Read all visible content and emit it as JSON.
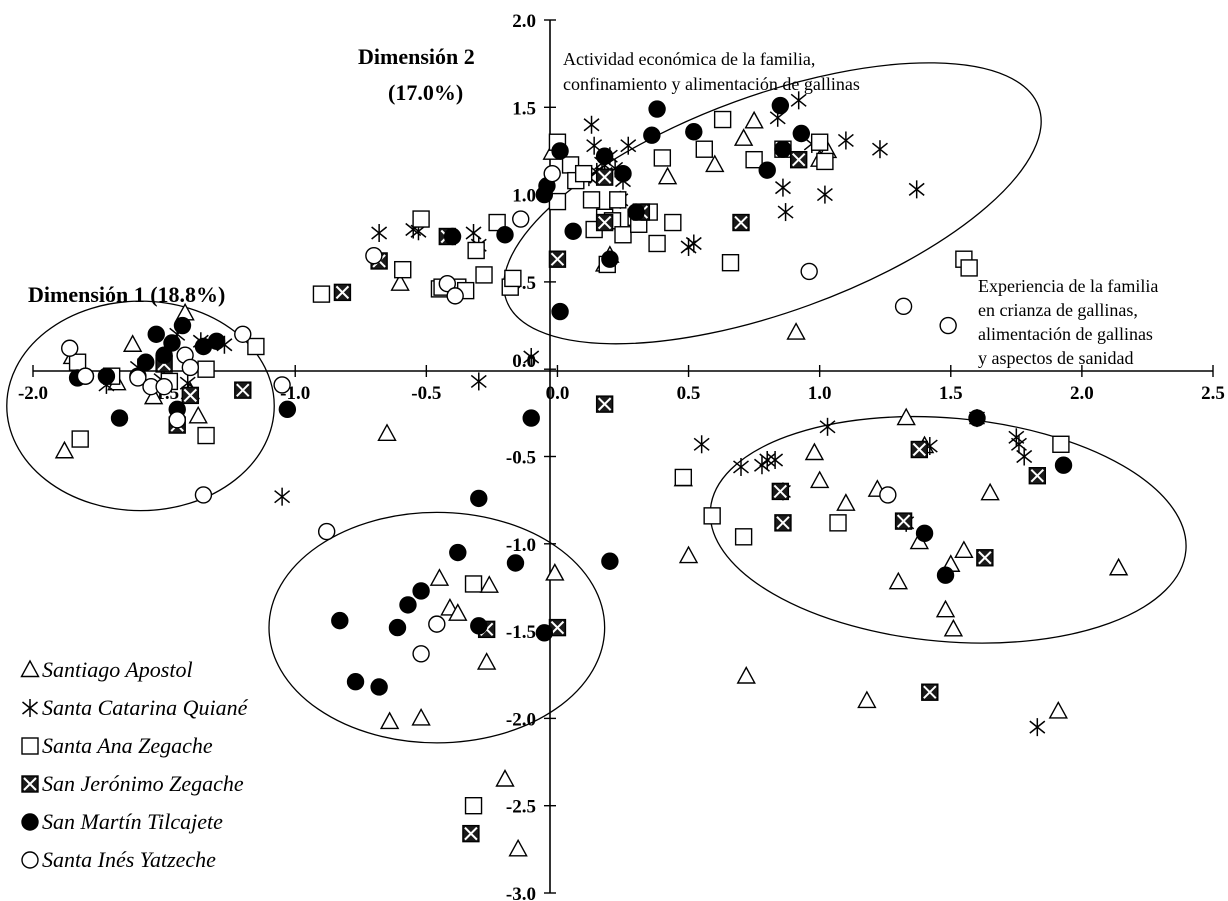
{
  "chart_data": {
    "type": "scatter",
    "xlim": [
      -2.0,
      2.5
    ],
    "ylim": [
      -3.0,
      2.0
    ],
    "x_ticks": [
      -2.0,
      -1.5,
      -1.0,
      -0.5,
      0.0,
      0.5,
      1.0,
      1.5,
      2.0,
      2.5
    ],
    "y_ticks": [
      -3.0,
      -2.5,
      -2.0,
      -1.5,
      -1.0,
      -0.5,
      0.0,
      0.5,
      1.0,
      1.5,
      2.0
    ],
    "x_tick_labels": [
      "-2.0",
      "-1.5",
      "-1.0",
      "-0.5",
      "0.0",
      "0.5",
      "1.0",
      "1.5",
      "2.0",
      "2.5"
    ],
    "y_tick_labels": [
      "-3.0",
      "-2.5",
      "-2.0",
      "-1.5",
      "-1.0",
      "-0.5",
      "0.0",
      "0.5",
      "1.0",
      "1.5",
      "2.0"
    ],
    "grid": false,
    "axis_labels": {
      "dimension1": "Dimensión 1 (18.8%)",
      "dimension2_line1": "Dimensión 2",
      "dimension2_line2": "(17.0%)"
    },
    "annotations": {
      "top_line1": "Actividad económica de la familia,",
      "top_line2": "confinamiento y alimentación de gallinas",
      "right_line1": "Experiencia de la familia",
      "right_line2": "en crianza de gallinas,",
      "right_line3": "alimentación de gallinas",
      "right_line4": "y aspectos de sanidad"
    },
    "legend_position": "bottom-left",
    "clusters": [
      {
        "cx": 0.82,
        "cy": 0.95,
        "rx": 1.08,
        "ry": 0.62,
        "angle": 20
      },
      {
        "cx": -1.59,
        "cy": -0.21,
        "rx": 0.51,
        "ry": 0.6,
        "angle": 0
      },
      {
        "cx": -0.46,
        "cy": -1.48,
        "rx": 0.64,
        "ry": 0.66,
        "angle": 0
      },
      {
        "cx": 1.49,
        "cy": -0.92,
        "rx": 0.91,
        "ry": 0.64,
        "angle": -5
      }
    ],
    "series": [
      {
        "name": "Santiago Apostol",
        "marker": "triangle",
        "points": [
          [
            -1.88,
            -0.47
          ],
          [
            -1.85,
            0.07
          ],
          [
            -1.68,
            -0.08
          ],
          [
            -1.62,
            0.14
          ],
          [
            -1.54,
            -0.16
          ],
          [
            -1.42,
            0.32
          ],
          [
            -1.4,
            -0.13
          ],
          [
            -1.37,
            -0.27
          ],
          [
            -0.65,
            -0.37
          ],
          [
            -0.6,
            0.49
          ],
          [
            -0.64,
            -2.02
          ],
          [
            -0.52,
            -2.0
          ],
          [
            -0.45,
            -1.2
          ],
          [
            -0.41,
            -1.37
          ],
          [
            -0.38,
            -1.4
          ],
          [
            -0.26,
            -1.24
          ],
          [
            -0.27,
            -1.68
          ],
          [
            -0.2,
            -2.35
          ],
          [
            -0.15,
            -2.75
          ],
          [
            -0.01,
            -1.17
          ],
          [
            -0.02,
            1.24
          ],
          [
            0.18,
            0.6
          ],
          [
            0.2,
            0.65
          ],
          [
            0.42,
            1.1
          ],
          [
            0.48,
            -0.63
          ],
          [
            0.5,
            -1.07
          ],
          [
            0.6,
            1.17
          ],
          [
            0.71,
            1.32
          ],
          [
            0.72,
            -1.76
          ],
          [
            0.75,
            1.42
          ],
          [
            0.91,
            0.21
          ],
          [
            0.98,
            -0.48
          ],
          [
            1.0,
            -0.64
          ],
          [
            1.0,
            1.2
          ],
          [
            1.03,
            1.25
          ],
          [
            1.1,
            -0.77
          ],
          [
            1.18,
            -1.9
          ],
          [
            1.22,
            -0.69
          ],
          [
            1.3,
            -1.22
          ],
          [
            1.33,
            -0.28
          ],
          [
            1.38,
            -0.99
          ],
          [
            1.4,
            -0.44
          ],
          [
            1.48,
            -1.38
          ],
          [
            1.5,
            -1.12
          ],
          [
            1.51,
            -1.49
          ],
          [
            1.55,
            -1.04
          ],
          [
            1.65,
            -0.71
          ],
          [
            1.91,
            -1.96
          ],
          [
            2.14,
            -1.14
          ]
        ]
      },
      {
        "name": "Santa Catarina Quiané",
        "marker": "asterisk",
        "points": [
          [
            -1.72,
            -0.09
          ],
          [
            -1.6,
            0.01
          ],
          [
            -1.51,
            -0.06
          ],
          [
            -1.45,
            0.2
          ],
          [
            -1.41,
            -0.08
          ],
          [
            -1.36,
            0.16
          ],
          [
            -1.27,
            0.14
          ],
          [
            -1.05,
            -0.73
          ],
          [
            -0.68,
            0.78
          ],
          [
            -0.55,
            0.8
          ],
          [
            -0.53,
            0.79
          ],
          [
            -0.32,
            0.78
          ],
          [
            -0.3,
            -0.07
          ],
          [
            -0.3,
            0.71
          ],
          [
            -0.1,
            0.07
          ],
          [
            0.1,
            1.1
          ],
          [
            0.12,
            1.1
          ],
          [
            0.13,
            1.4
          ],
          [
            0.14,
            1.28
          ],
          [
            0.15,
            1.13
          ],
          [
            0.17,
            1.18
          ],
          [
            0.18,
            1.12
          ],
          [
            0.2,
            1.22
          ],
          [
            0.22,
            1.15
          ],
          [
            0.24,
            0.97
          ],
          [
            0.25,
            1.08
          ],
          [
            0.27,
            1.28
          ],
          [
            0.5,
            0.7
          ],
          [
            0.52,
            0.72
          ],
          [
            0.55,
            -0.43
          ],
          [
            0.7,
            -0.56
          ],
          [
            0.78,
            -0.55
          ],
          [
            0.8,
            -0.52
          ],
          [
            0.83,
            -0.52
          ],
          [
            0.84,
            1.44
          ],
          [
            0.86,
            1.04
          ],
          [
            0.86,
            -0.7
          ],
          [
            0.87,
            0.9
          ],
          [
            0.92,
            1.54
          ],
          [
            0.97,
            1.29
          ],
          [
            1.02,
            1.0
          ],
          [
            1.03,
            -0.33
          ],
          [
            1.1,
            1.31
          ],
          [
            1.23,
            1.26
          ],
          [
            1.37,
            1.03
          ],
          [
            1.33,
            -0.88
          ],
          [
            1.42,
            -0.44
          ],
          [
            1.6,
            -0.28
          ],
          [
            1.75,
            -0.39
          ],
          [
            1.76,
            -0.43
          ],
          [
            1.78,
            -0.5
          ],
          [
            1.83,
            -2.05
          ]
        ]
      },
      {
        "name": "Santa Ana Zegache",
        "marker": "square",
        "points": [
          [
            -1.82,
            -0.4
          ],
          [
            -1.83,
            0.04
          ],
          [
            -1.7,
            -0.04
          ],
          [
            -1.48,
            -0.07
          ],
          [
            -1.34,
            -0.38
          ],
          [
            -1.34,
            0.0
          ],
          [
            -1.15,
            0.13
          ],
          [
            -0.9,
            0.43
          ],
          [
            -0.59,
            0.57
          ],
          [
            -0.52,
            0.86
          ],
          [
            -0.45,
            0.46
          ],
          [
            -0.44,
            0.47
          ],
          [
            -0.38,
            0.47
          ],
          [
            -0.35,
            0.45
          ],
          [
            -0.31,
            0.68
          ],
          [
            -0.28,
            0.54
          ],
          [
            -0.23,
            0.84
          ],
          [
            -0.18,
            0.47
          ],
          [
            -0.17,
            0.52
          ],
          [
            0.0,
            0.96
          ],
          [
            0.0,
            1.3
          ],
          [
            0.05,
            1.17
          ],
          [
            0.07,
            1.08
          ],
          [
            0.1,
            1.12
          ],
          [
            0.13,
            0.97
          ],
          [
            0.14,
            0.8
          ],
          [
            0.18,
            0.87
          ],
          [
            0.19,
            0.6
          ],
          [
            0.21,
            0.85
          ],
          [
            0.23,
            0.97
          ],
          [
            0.25,
            0.77
          ],
          [
            0.3,
            0.87
          ],
          [
            0.31,
            0.83
          ],
          [
            0.35,
            0.9
          ],
          [
            0.38,
            0.72
          ],
          [
            0.4,
            1.21
          ],
          [
            0.44,
            0.84
          ],
          [
            0.48,
            -0.62
          ],
          [
            0.56,
            1.26
          ],
          [
            0.59,
            -0.84
          ],
          [
            0.63,
            1.43
          ],
          [
            0.66,
            0.61
          ],
          [
            0.71,
            -0.96
          ],
          [
            0.75,
            1.2
          ],
          [
            0.86,
            1.26
          ],
          [
            1.07,
            -0.88
          ],
          [
            1.0,
            1.3
          ],
          [
            1.02,
            1.19
          ],
          [
            1.55,
            0.63
          ],
          [
            1.57,
            0.58
          ],
          [
            1.92,
            -0.43
          ],
          [
            -0.32,
            -1.23
          ],
          [
            -0.32,
            -2.5
          ]
        ]
      },
      {
        "name": "San Jerónimo Zegache",
        "marker": "square-x",
        "points": [
          [
            -1.5,
            0.03
          ],
          [
            -1.45,
            -0.32
          ],
          [
            -1.4,
            -0.15
          ],
          [
            -1.2,
            -0.12
          ],
          [
            -0.82,
            0.44
          ],
          [
            -0.68,
            0.62
          ],
          [
            -0.42,
            0.76
          ],
          [
            -0.27,
            -1.49
          ],
          [
            0.0,
            -1.48
          ],
          [
            0.0,
            0.63
          ],
          [
            0.18,
            -0.2
          ],
          [
            0.18,
            0.84
          ],
          [
            0.18,
            1.1
          ],
          [
            0.32,
            0.9
          ],
          [
            0.7,
            0.84
          ],
          [
            0.85,
            -0.7
          ],
          [
            0.86,
            -0.88
          ],
          [
            0.92,
            1.2
          ],
          [
            1.32,
            -0.87
          ],
          [
            1.38,
            -0.46
          ],
          [
            1.42,
            -1.85
          ],
          [
            1.63,
            -1.08
          ],
          [
            1.83,
            -0.61
          ],
          [
            -0.33,
            -2.66
          ]
        ]
      },
      {
        "name": "San Martín Tilcajete",
        "marker": "circle-filled",
        "points": [
          [
            -1.83,
            -0.05
          ],
          [
            -1.8,
            -0.04
          ],
          [
            -1.72,
            -0.04
          ],
          [
            -1.67,
            -0.28
          ],
          [
            -1.6,
            -0.04
          ],
          [
            -1.57,
            0.04
          ],
          [
            -1.53,
            0.2
          ],
          [
            -1.5,
            0.08
          ],
          [
            -1.47,
            0.15
          ],
          [
            -1.45,
            -0.23
          ],
          [
            -1.43,
            0.25
          ],
          [
            -1.35,
            0.13
          ],
          [
            -1.3,
            0.16
          ],
          [
            -1.03,
            -0.23
          ],
          [
            -0.83,
            -1.44
          ],
          [
            -0.77,
            -1.79
          ],
          [
            -0.68,
            -1.82
          ],
          [
            -0.61,
            -1.48
          ],
          [
            -0.57,
            -1.35
          ],
          [
            -0.52,
            -1.27
          ],
          [
            -0.4,
            0.76
          ],
          [
            -0.38,
            -1.05
          ],
          [
            -0.3,
            -0.74
          ],
          [
            -0.3,
            -1.47
          ],
          [
            -0.2,
            0.77
          ],
          [
            -0.16,
            -1.11
          ],
          [
            -0.1,
            -0.28
          ],
          [
            -0.05,
            -1.51
          ],
          [
            -0.05,
            1.0
          ],
          [
            -0.04,
            1.05
          ],
          [
            0.01,
            1.25
          ],
          [
            0.01,
            0.33
          ],
          [
            0.06,
            0.79
          ],
          [
            0.18,
            1.22
          ],
          [
            0.2,
            0.63
          ],
          [
            0.25,
            1.12
          ],
          [
            0.3,
            0.9
          ],
          [
            0.36,
            1.34
          ],
          [
            0.38,
            1.49
          ],
          [
            0.52,
            1.36
          ],
          [
            0.8,
            1.14
          ],
          [
            0.85,
            1.51
          ],
          [
            0.86,
            1.26
          ],
          [
            0.93,
            1.35
          ],
          [
            1.4,
            -0.94
          ],
          [
            1.48,
            -1.18
          ],
          [
            1.6,
            -0.28
          ],
          [
            1.93,
            -0.55
          ],
          [
            0.2,
            -1.1
          ]
        ]
      },
      {
        "name": "Santa Inés Yatzeche",
        "marker": "circle-open",
        "points": [
          [
            -1.86,
            0.12
          ],
          [
            -1.8,
            -0.04
          ],
          [
            -1.6,
            -0.05
          ],
          [
            -1.55,
            -0.1
          ],
          [
            -1.5,
            -0.1
          ],
          [
            -1.45,
            -0.29
          ],
          [
            -1.42,
            0.08
          ],
          [
            -1.4,
            0.01
          ],
          [
            -1.35,
            -0.72
          ],
          [
            -1.2,
            0.2
          ],
          [
            -1.05,
            -0.09
          ],
          [
            -0.88,
            -0.93
          ],
          [
            -0.7,
            0.65
          ],
          [
            -0.52,
            -1.63
          ],
          [
            -0.46,
            -1.46
          ],
          [
            -0.42,
            0.49
          ],
          [
            -0.39,
            0.42
          ],
          [
            -0.14,
            0.86
          ],
          [
            -0.02,
            1.12
          ],
          [
            0.96,
            0.56
          ],
          [
            1.26,
            -0.72
          ],
          [
            1.32,
            0.36
          ],
          [
            1.49,
            0.25
          ]
        ]
      }
    ]
  }
}
